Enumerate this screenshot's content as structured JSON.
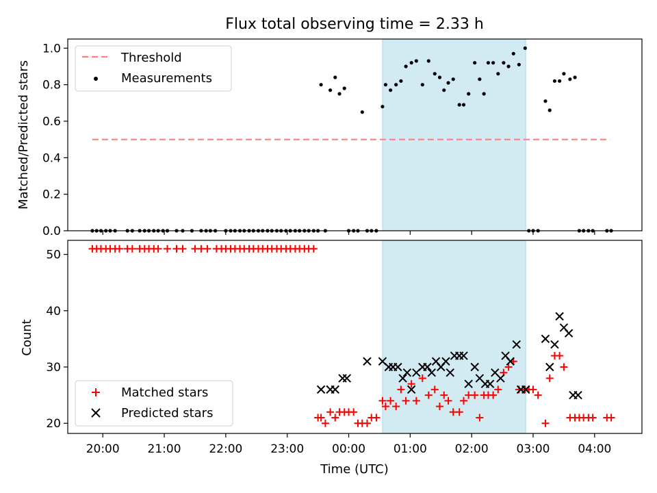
{
  "chart_data": [
    {
      "type": "scatter",
      "title": "Flux total observing time = 2.33 h",
      "ylabel": "Matched/Predicted stars",
      "ylim": [
        0,
        1.05
      ],
      "xlim": [
        19.43,
        28.77
      ],
      "yticks": [
        0.0,
        0.2,
        0.4,
        0.6,
        0.8,
        1.0
      ],
      "ytick_labels": [
        "0.0",
        "0.2",
        "0.4",
        "0.6",
        "0.8",
        "1.0"
      ],
      "grid": false,
      "legend": {
        "placement": "top-left",
        "entries": [
          "Threshold",
          "Measurements"
        ]
      },
      "shaded_interval": [
        24.55,
        26.88
      ],
      "threshold": {
        "name": "Threshold",
        "value": 0.5,
        "x": [
          19.83,
          28.25
        ],
        "color": "#ff7f7f"
      },
      "series": [
        {
          "name": "Measurements",
          "color": "#000000",
          "x": [
            19.83,
            19.9,
            19.97,
            20.05,
            20.12,
            20.2,
            20.4,
            20.48,
            20.6,
            20.68,
            20.75,
            20.83,
            20.9,
            20.98,
            21.05,
            21.2,
            21.3,
            21.45,
            21.6,
            21.68,
            21.75,
            21.83,
            22.0,
            22.08,
            22.15,
            22.23,
            22.3,
            22.38,
            22.45,
            22.53,
            22.6,
            22.68,
            22.75,
            22.83,
            22.9,
            22.98,
            23.05,
            23.13,
            23.2,
            23.28,
            23.35,
            23.43,
            23.5,
            23.55,
            23.62,
            23.7,
            23.78,
            23.85,
            23.93,
            24.0,
            24.08,
            24.15,
            24.22,
            24.3,
            24.37,
            24.45,
            24.55,
            24.6,
            24.68,
            24.77,
            24.85,
            24.93,
            25.02,
            25.1,
            25.2,
            25.3,
            25.4,
            25.48,
            25.55,
            25.62,
            25.7,
            25.8,
            25.87,
            25.95,
            26.05,
            26.13,
            26.2,
            26.27,
            26.35,
            26.43,
            26.52,
            26.6,
            26.68,
            26.77,
            26.87,
            26.93,
            27.0,
            27.08,
            27.2,
            27.27,
            27.35,
            27.43,
            27.5,
            27.6,
            27.68,
            27.75,
            27.82,
            27.9,
            27.97,
            28.2,
            28.27
          ],
          "values": [
            0,
            0,
            0,
            0,
            0,
            0,
            0,
            0,
            0,
            0,
            0,
            0,
            0,
            0,
            0,
            0,
            0,
            0,
            0,
            0,
            0,
            0,
            0,
            0,
            0,
            0,
            0,
            0,
            0,
            0,
            0,
            0,
            0,
            0,
            0,
            0,
            0,
            0,
            0,
            0,
            0,
            0,
            0,
            0.8,
            0,
            0.77,
            0.84,
            0.75,
            0.78,
            0,
            0,
            0,
            0.65,
            0,
            0,
            0,
            0.68,
            0.8,
            0.77,
            0.8,
            0.82,
            0.9,
            0.92,
            0.93,
            0.8,
            0.93,
            0.86,
            0.84,
            0.77,
            0.81,
            0.83,
            0.69,
            0.69,
            0.75,
            0.92,
            0.83,
            0.75,
            0.92,
            0.92,
            0.86,
            0.92,
            0.9,
            0.97,
            0.91,
            1.0,
            0,
            0,
            0,
            0.71,
            0.66,
            0.82,
            0.82,
            0.86,
            0.83,
            0.84,
            0,
            0,
            0,
            0,
            0,
            0
          ]
        }
      ]
    },
    {
      "type": "scatter",
      "xlabel": "Time (UTC)",
      "ylabel": "Count",
      "xlim": [
        19.43,
        28.77
      ],
      "ylim": [
        18.2,
        52.5
      ],
      "xticks": [
        20,
        21,
        22,
        23,
        24,
        25,
        26,
        27,
        28
      ],
      "xtick_labels": [
        "20:00",
        "21:00",
        "22:00",
        "23:00",
        "00:00",
        "01:00",
        "02:00",
        "03:00",
        "04:00"
      ],
      "yticks": [
        20,
        30,
        40,
        50
      ],
      "ytick_labels": [
        "20",
        "30",
        "40",
        "50"
      ],
      "grid": false,
      "legend": {
        "placement": "bottom-left",
        "entries": [
          "Matched stars",
          "Predicted stars"
        ]
      },
      "shaded_interval": [
        24.55,
        26.88
      ],
      "series": [
        {
          "name": "Matched stars",
          "marker": "+",
          "color": "#ff0000",
          "x": [
            19.83,
            19.9,
            19.97,
            20.05,
            20.12,
            20.2,
            20.27,
            20.4,
            20.48,
            20.6,
            20.68,
            20.75,
            20.83,
            20.9,
            21.05,
            21.2,
            21.3,
            21.5,
            21.6,
            21.7,
            21.85,
            21.93,
            22.0,
            22.08,
            22.15,
            22.23,
            22.3,
            22.38,
            22.45,
            22.53,
            22.6,
            22.68,
            22.75,
            22.83,
            22.9,
            22.98,
            23.05,
            23.13,
            23.2,
            23.28,
            23.35,
            23.43,
            23.5,
            23.55,
            23.62,
            23.7,
            23.78,
            23.85,
            23.93,
            24.0,
            24.08,
            24.15,
            24.22,
            24.3,
            24.37,
            24.45,
            24.55,
            24.6,
            24.68,
            24.77,
            24.85,
            24.93,
            25.02,
            25.1,
            25.2,
            25.3,
            25.4,
            25.48,
            25.55,
            25.62,
            25.7,
            25.8,
            25.87,
            25.95,
            26.05,
            26.13,
            26.2,
            26.27,
            26.35,
            26.43,
            26.52,
            26.6,
            26.68,
            26.77,
            26.87,
            26.93,
            27.0,
            27.08,
            27.2,
            27.27,
            27.35,
            27.43,
            27.5,
            27.6,
            27.68,
            27.75,
            27.82,
            27.9,
            27.97,
            28.2,
            28.27
          ],
          "values": [
            51,
            51,
            51,
            51,
            51,
            51,
            51,
            51,
            51,
            51,
            51,
            51,
            51,
            51,
            51,
            51,
            51,
            51,
            51,
            51,
            51,
            51,
            51,
            51,
            51,
            51,
            51,
            51,
            51,
            51,
            51,
            51,
            51,
            51,
            51,
            51,
            51,
            51,
            51,
            51,
            51,
            51,
            21,
            21,
            20,
            22,
            21,
            22,
            22,
            22,
            22,
            20,
            20,
            20,
            21,
            21,
            24,
            23,
            24,
            23,
            26,
            24,
            27,
            24,
            28,
            25,
            26,
            23,
            25,
            24,
            22,
            22,
            24,
            25,
            25,
            21,
            25,
            25,
            25,
            26,
            29,
            30,
            31,
            26,
            26,
            26,
            26,
            25,
            20,
            28,
            32,
            32,
            30,
            21,
            21,
            21,
            21,
            21,
            21,
            21,
            21
          ],
          "values_note_removed": null
        },
        {
          "name": "Predicted stars",
          "marker": "x",
          "color": "#000000",
          "x": [
            23.55,
            23.7,
            23.78,
            23.9,
            23.97,
            24.3,
            24.55,
            24.65,
            24.72,
            24.8,
            24.88,
            24.95,
            25.02,
            25.1,
            25.2,
            25.28,
            25.35,
            25.42,
            25.5,
            25.58,
            25.65,
            25.72,
            25.8,
            25.87,
            25.95,
            26.05,
            26.13,
            26.22,
            26.3,
            26.38,
            26.47,
            26.55,
            26.63,
            26.73,
            26.8,
            26.88,
            27.2,
            27.27,
            27.35,
            27.43,
            27.5,
            27.58,
            27.65,
            27.73
          ],
          "values": [
            26,
            26,
            26,
            28,
            28,
            31,
            31,
            30,
            30,
            30,
            28,
            29,
            26,
            29,
            30,
            30,
            29,
            31,
            30,
            31,
            29,
            32,
            32,
            32,
            27,
            30,
            28,
            27,
            27,
            29,
            28,
            32,
            31,
            34,
            26,
            26,
            35,
            30,
            34,
            39,
            37,
            36,
            25,
            25
          ]
        }
      ]
    }
  ]
}
